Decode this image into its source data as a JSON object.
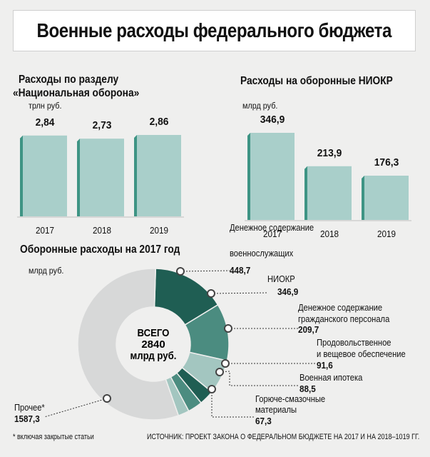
{
  "title": "Военные расходы федерального бюджета",
  "defense": {
    "title_line1": "Расходы по разделу",
    "title_line2": "«Национальная оборона»",
    "unit": "трлн руб."
  },
  "rnd": {
    "title": "Расходы на оборонные НИОКР",
    "unit": "млрд руб."
  },
  "spending2017": {
    "title": "Оборонные расходы на 2017 год",
    "unit": "млрд руб.",
    "center_line1": "ВСЕГО",
    "center_line2": "2840",
    "center_line3": "млрд руб."
  },
  "footnote": "* включая закрытые статьи",
  "source": "ИСТОЧНИК: ПРОЕКТ ЗАКОНА О ФЕДЕРАЛЬНОМ БЮДЖЕТЕ НА 2017 И НА 2018–1019 ГГ.",
  "colors": {
    "bar": "#a9cfca",
    "bar_side": "#3e9484",
    "dark": "#1f5e53",
    "medium": "#4b8c80",
    "light": "#a3c6c0",
    "grey": "#d7d8d8"
  },
  "chart_data": [
    {
      "type": "bar",
      "categories": [
        "2017",
        "2018",
        "2019"
      ],
      "values": [
        2.84,
        2.73,
        2.86
      ],
      "value_labels": [
        "2,84",
        "2,73",
        "2,86"
      ],
      "title": "Расходы по разделу «Национальная оборона»",
      "ylabel": "трлн руб."
    },
    {
      "type": "bar",
      "categories": [
        "2017",
        "2018",
        "2019"
      ],
      "values": [
        346.9,
        213.9,
        176.3
      ],
      "value_labels": [
        "346,9",
        "213,9",
        "176,3"
      ],
      "title": "Расходы на оборонные НИОКР",
      "ylabel": "млрд руб."
    },
    {
      "type": "pie",
      "title": "Оборонные расходы на 2017 год",
      "unit": "млрд руб.",
      "total": 2840,
      "slices": [
        {
          "label_lines": [
            "Денежное содержание",
            "военнослужащих"
          ],
          "value": 448.7,
          "value_label": "448,7",
          "color": "#1f5e53"
        },
        {
          "label_lines": [
            "НИОКР"
          ],
          "value": 346.9,
          "value_label": "346,9",
          "color": "#4b8c80"
        },
        {
          "label_lines": [
            "Денежное содержание",
            "гражданского персонала"
          ],
          "value": 209.7,
          "value_label": "209,7",
          "color": "#a3c6c0"
        },
        {
          "label_lines": [
            "Продовольственное",
            "и вещевое обеспечение"
          ],
          "value": 91.6,
          "value_label": "91,6",
          "color": "#1f5e53"
        },
        {
          "label_lines": [
            "Военная ипотека"
          ],
          "value": 88.5,
          "value_label": "88,5",
          "color": "#4b8c80"
        },
        {
          "label_lines": [
            "Горюче-смазочные",
            "материалы"
          ],
          "value": 67.3,
          "value_label": "67,3",
          "color": "#a3c6c0"
        },
        {
          "label_lines": [
            "Прочее*"
          ],
          "value": 1587.3,
          "value_label": "1587,3",
          "color": "#d7d8d8"
        }
      ]
    }
  ]
}
